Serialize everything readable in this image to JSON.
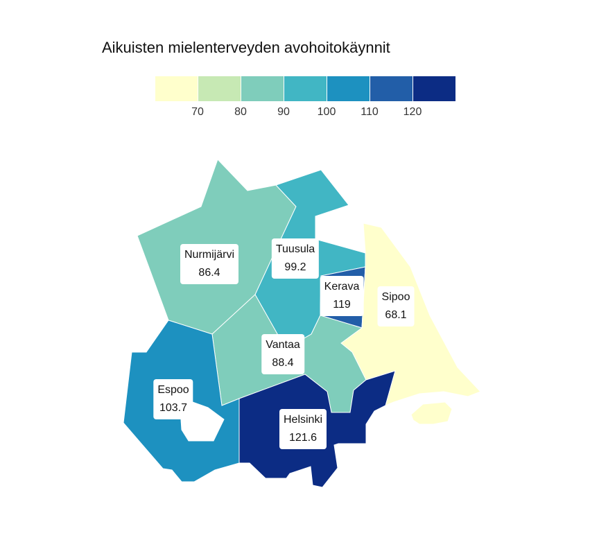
{
  "title": "Aikuisten mielenterveyden avohoitokäynnit",
  "legend": {
    "colors": [
      "#ffffcc",
      "#c7e9b4",
      "#7fcdbb",
      "#41b6c4",
      "#1d91c0",
      "#225ea8",
      "#0c2c84"
    ],
    "ticks": [
      "70",
      "80",
      "90",
      "100",
      "110",
      "120"
    ]
  },
  "regions": [
    {
      "name": "Nurmijärvi",
      "value": "86.4",
      "color": "#7fcdbb"
    },
    {
      "name": "Tuusula",
      "value": "99.2",
      "color": "#41b6c4"
    },
    {
      "name": "Kerava",
      "value": "119",
      "color": "#225ea8"
    },
    {
      "name": "Sipoo",
      "value": "68.1",
      "color": "#ffffcc"
    },
    {
      "name": "Vantaa",
      "value": "88.4",
      "color": "#7fcdbb"
    },
    {
      "name": "Espoo",
      "value": "103.7",
      "color": "#1d91c0"
    },
    {
      "name": "Helsinki",
      "value": "121.6",
      "color": "#0c2c84"
    }
  ]
}
